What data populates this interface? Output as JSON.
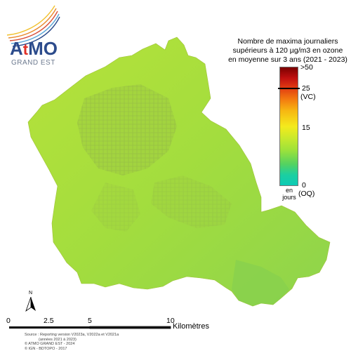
{
  "logo": {
    "brand": "AtMO",
    "region": "GRAND EST"
  },
  "legend": {
    "title_lines": [
      "Nombre de maxima journaliers",
      "supérieurs à 120 µg/m3 en ozone",
      "en moyenne sur 3 ans (2021 - 2023)"
    ],
    "labels": {
      "max": ">50",
      "threshold": "25",
      "threshold_tag": "(VC)",
      "mid": "15",
      "min": "0",
      "min_tag": "(OQ)",
      "unit_line1": "en",
      "unit_line2": "jours"
    }
  },
  "scale_bar": {
    "ticks": [
      "0",
      "2.5",
      "5",
      "10"
    ],
    "unit": "Kilomètres"
  },
  "north": "N",
  "source_lines": [
    "Source : Reporting version V2023a, V2022a et V2021a",
    "(années 2021 à 2023)",
    "© ATMO GRAND EST - 2024",
    "© IGN - BDTOPO - 2017"
  ],
  "colors": {
    "map_fill": "#a6de3c",
    "map_fill_light": "#b4e23a",
    "map_fill_dark": "#8fd64a",
    "logo_blue": "#2d4c8c",
    "logo_red": "#e03028"
  }
}
